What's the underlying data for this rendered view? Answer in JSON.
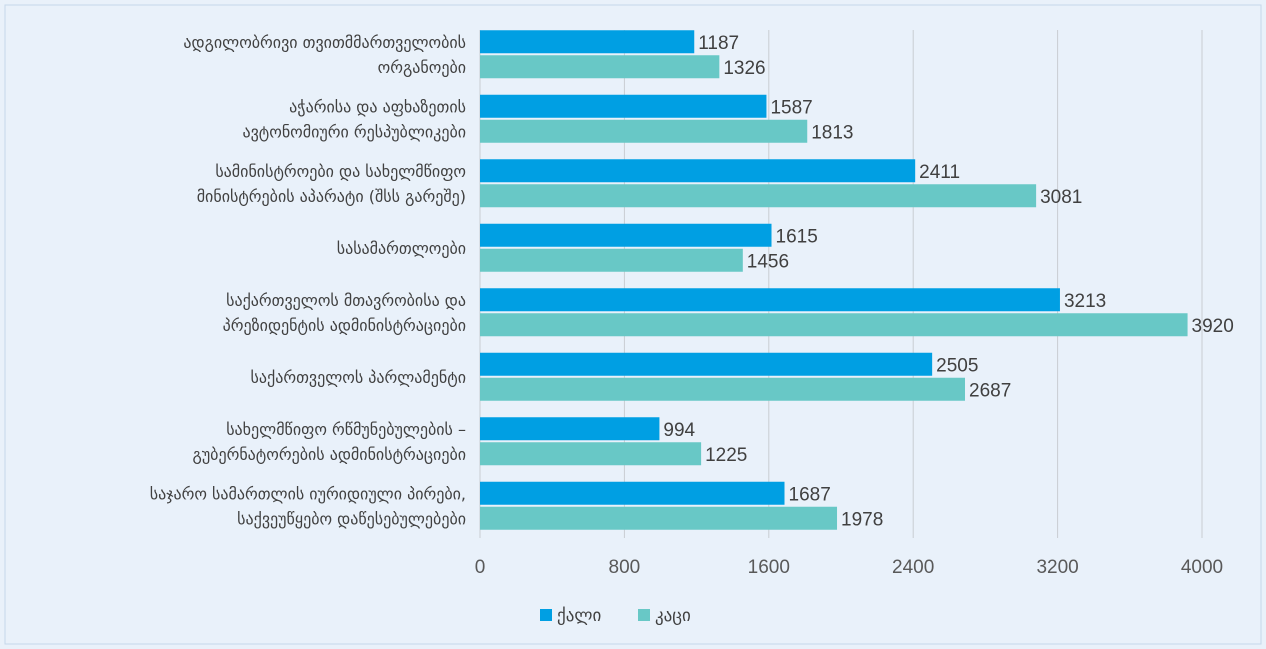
{
  "chart_data": {
    "type": "bar",
    "orientation": "horizontal",
    "categories": [
      [
        "ადგილობრივი თვითმმართველობის",
        "ორგანოები"
      ],
      [
        "აჭარისა და  აფხაზეთის",
        "ავტონომიური რესპუბლიკები"
      ],
      [
        "სამინისტროები და სახელმწიფო",
        "მინისტრების აპარატი (შსს გარეშე)"
      ],
      [
        "სასამართლოები"
      ],
      [
        "საქართველოს მთავრობისა და",
        "პრეზიდენტის ადმინისტრაციები"
      ],
      [
        "საქართველოს პარლამენტი"
      ],
      [
        "სახელმწიფო რწმუნებულების –",
        "გუბერნატორების ადმინისტრაციები"
      ],
      [
        "საჯარო სამართლის იურიდიული პირები,",
        "საქვეუწყებო დაწესებულებები"
      ]
    ],
    "series": [
      {
        "name": "ქალი",
        "color": "#009fe3",
        "values": [
          1187,
          1587,
          2411,
          1615,
          3213,
          2505,
          994,
          1687
        ]
      },
      {
        "name": "კაცი",
        "color": "#68c8c6",
        "values": [
          1326,
          1813,
          3081,
          1456,
          3920,
          2687,
          1225,
          1978
        ]
      }
    ],
    "xlim": [
      0,
      4000
    ],
    "xticks": [
      0,
      800,
      1600,
      2400,
      3200,
      4000
    ],
    "grid": true,
    "legend_position": "bottom"
  }
}
